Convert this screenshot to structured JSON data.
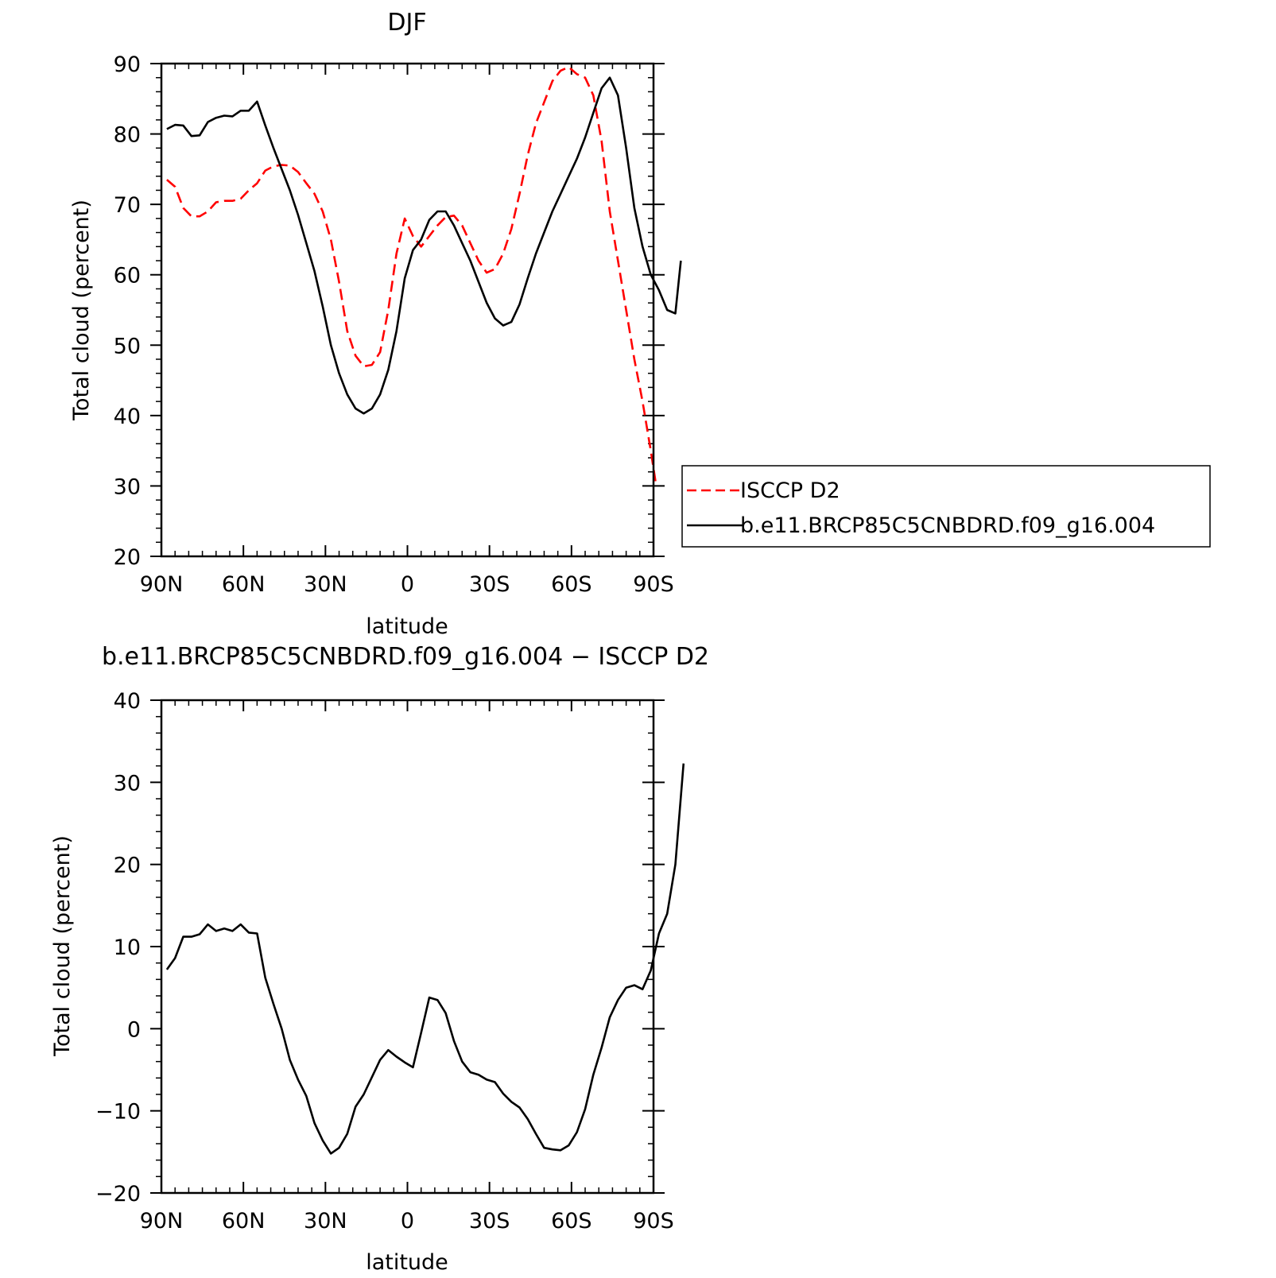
{
  "chart_data": [
    {
      "type": "line",
      "title": "DJF",
      "xlabel": "latitude",
      "ylabel": "Total cloud (percent)",
      "xlim": [
        90,
        -90
      ],
      "ylim": [
        20,
        90
      ],
      "x_ticks": [
        90,
        60,
        30,
        0,
        -30,
        -60,
        -90
      ],
      "x_tick_labels": [
        "90N",
        "60N",
        "30N",
        "0",
        "30S",
        "60S",
        "90S"
      ],
      "y_ticks": [
        20,
        30,
        40,
        50,
        60,
        70,
        80,
        90
      ],
      "y_tick_labels": [
        "20",
        "30",
        "40",
        "50",
        "60",
        "70",
        "80",
        "90"
      ],
      "grid": false,
      "legend_position": "right, outside plot",
      "series": [
        {
          "name": "ISCCP D2",
          "color": "#ff0000",
          "dash": "dashed",
          "points": [
            [
              88,
              73.5
            ],
            [
              85,
              72.5
            ],
            [
              82,
              69.5
            ],
            [
              79,
              68.3
            ],
            [
              76,
              68.3
            ],
            [
              73,
              69
            ],
            [
              70,
              70.3
            ],
            [
              67,
              70.5
            ],
            [
              64,
              70.5
            ],
            [
              61,
              70.8
            ],
            [
              58,
              72
            ],
            [
              55,
              73
            ],
            [
              52,
              74.8
            ],
            [
              49,
              75.4
            ],
            [
              46,
              75.6
            ],
            [
              43,
              75.5
            ],
            [
              40,
              74.6
            ],
            [
              37,
              73
            ],
            [
              34,
              71.5
            ],
            [
              31,
              69
            ],
            [
              28,
              65
            ],
            [
              25,
              59
            ],
            [
              22,
              52
            ],
            [
              19,
              48.5
            ],
            [
              16,
              47
            ],
            [
              13,
              47.2
            ],
            [
              10,
              49
            ],
            [
              7,
              55
            ],
            [
              4,
              63
            ],
            [
              1,
              68
            ],
            [
              -2,
              65.5
            ],
            [
              -5,
              64
            ],
            [
              -8,
              65.5
            ],
            [
              -11,
              67
            ],
            [
              -14,
              68.2
            ],
            [
              -17,
              68.4
            ],
            [
              -20,
              67
            ],
            [
              -23,
              64.5
            ],
            [
              -26,
              62
            ],
            [
              -29,
              60.3
            ],
            [
              -32,
              60.8
            ],
            [
              -35,
              63
            ],
            [
              -38,
              66.5
            ],
            [
              -41,
              71.5
            ],
            [
              -44,
              77
            ],
            [
              -47,
              81.5
            ],
            [
              -50,
              84.5
            ],
            [
              -53,
              87.5
            ],
            [
              -56,
              89
            ],
            [
              -59,
              89.5
            ],
            [
              -62,
              88.5
            ],
            [
              -65,
              88
            ],
            [
              -68,
              85.5
            ],
            [
              -71,
              79
            ],
            [
              -74,
              69
            ],
            [
              -77,
              62
            ],
            [
              -80,
              55
            ],
            [
              -83,
              48
            ],
            [
              -86,
              42
            ],
            [
              -89,
              35
            ],
            [
              -91,
              30
            ]
          ]
        },
        {
          "name": "b.e11.BRCP85C5CNBDRD.f09_g16.004",
          "color": "#000000",
          "dash": "solid",
          "points": [
            [
              88,
              80.7
            ],
            [
              85,
              81.3
            ],
            [
              82,
              81.2
            ],
            [
              79,
              79.7
            ],
            [
              76,
              79.8
            ],
            [
              73,
              81.7
            ],
            [
              70,
              82.3
            ],
            [
              67,
              82.6
            ],
            [
              64,
              82.5
            ],
            [
              61,
              83.3
            ],
            [
              58,
              83.3
            ],
            [
              55,
              84.6
            ],
            [
              52,
              81.2
            ],
            [
              49,
              78
            ],
            [
              46,
              75
            ],
            [
              43,
              72
            ],
            [
              40,
              68.5
            ],
            [
              37,
              64.5
            ],
            [
              34,
              60.5
            ],
            [
              31,
              55.5
            ],
            [
              28,
              50
            ],
            [
              25,
              46
            ],
            [
              22,
              43
            ],
            [
              19,
              41
            ],
            [
              16,
              40.3
            ],
            [
              13,
              41
            ],
            [
              10,
              43
            ],
            [
              7,
              46.5
            ],
            [
              4,
              52
            ],
            [
              1,
              59.5
            ],
            [
              -2,
              63.5
            ],
            [
              -5,
              65
            ],
            [
              -8,
              67.8
            ],
            [
              -11,
              69
            ],
            [
              -14,
              69
            ],
            [
              -17,
              67
            ],
            [
              -20,
              64.5
            ],
            [
              -23,
              62
            ],
            [
              -26,
              59
            ],
            [
              -29,
              56
            ],
            [
              -32,
              53.8
            ],
            [
              -35,
              52.8
            ],
            [
              -38,
              53.3
            ],
            [
              -41,
              55.8
            ],
            [
              -44,
              59.5
            ],
            [
              -47,
              63
            ],
            [
              -50,
              66
            ],
            [
              -53,
              69
            ],
            [
              -56,
              71.5
            ],
            [
              -59,
              74
            ],
            [
              -62,
              76.5
            ],
            [
              -65,
              79.5
            ],
            [
              -68,
              83
            ],
            [
              -71,
              86.5
            ],
            [
              -74,
              88
            ],
            [
              -77,
              85.5
            ],
            [
              -80,
              78
            ],
            [
              -83,
              69.5
            ],
            [
              -86,
              64
            ],
            [
              -89,
              60
            ],
            [
              -92,
              57.8
            ],
            [
              -95,
              55
            ],
            [
              -98,
              54.5
            ],
            [
              -100,
              62
            ]
          ]
        }
      ]
    },
    {
      "type": "line",
      "title": "b.e11.BRCP85C5CNBDRD.f09_g16.004 − ISCCP D2",
      "xlabel": "latitude",
      "ylabel": "Total cloud (percent)",
      "xlim": [
        90,
        -90
      ],
      "ylim": [
        -20,
        40
      ],
      "x_ticks": [
        90,
        60,
        30,
        0,
        -30,
        -60,
        -90
      ],
      "x_tick_labels": [
        "90N",
        "60N",
        "30N",
        "0",
        "30S",
        "60S",
        "90S"
      ],
      "y_ticks": [
        -20,
        -10,
        0,
        10,
        20,
        30,
        40
      ],
      "y_tick_labels": [
        "−20",
        "−10",
        "0",
        "10",
        "20",
        "30",
        "40"
      ],
      "grid": false,
      "series": [
        {
          "color": "#000000",
          "dash": "solid",
          "points": [
            [
              88,
              7.2
            ],
            [
              85,
              8.6
            ],
            [
              82,
              11.2
            ],
            [
              79,
              11.2
            ],
            [
              76,
              11.5
            ],
            [
              73,
              12.7
            ],
            [
              70,
              11.9
            ],
            [
              67,
              12.2
            ],
            [
              64,
              11.9
            ],
            [
              61,
              12.7
            ],
            [
              58,
              11.7
            ],
            [
              55,
              11.6
            ],
            [
              52,
              6.2
            ],
            [
              49,
              3
            ],
            [
              46,
              0
            ],
            [
              43,
              -3.8
            ],
            [
              40,
              -6.2
            ],
            [
              37,
              -8.2
            ],
            [
              34,
              -11.5
            ],
            [
              31,
              -13.6
            ],
            [
              28,
              -15.2
            ],
            [
              25,
              -14.5
            ],
            [
              22,
              -12.8
            ],
            [
              19,
              -9.5
            ],
            [
              16,
              -8
            ],
            [
              13,
              -5.9
            ],
            [
              10,
              -3.8
            ],
            [
              7,
              -2.6
            ],
            [
              4,
              -3.4
            ],
            [
              1,
              -4.1
            ],
            [
              -2,
              -4.7
            ],
            [
              -5,
              -0.5
            ],
            [
              -8,
              3.8
            ],
            [
              -11,
              3.5
            ],
            [
              -14,
              1.9
            ],
            [
              -17,
              -1.5
            ],
            [
              -20,
              -4
            ],
            [
              -23,
              -5.3
            ],
            [
              -26,
              -5.6
            ],
            [
              -29,
              -6.2
            ],
            [
              -32,
              -6.5
            ],
            [
              -35,
              -7.9
            ],
            [
              -38,
              -8.9
            ],
            [
              -41,
              -9.6
            ],
            [
              -44,
              -11
            ],
            [
              -47,
              -12.8
            ],
            [
              -50,
              -14.5
            ],
            [
              -53,
              -14.7
            ],
            [
              -56,
              -14.8
            ],
            [
              -59,
              -14.2
            ],
            [
              -62,
              -12.6
            ],
            [
              -65,
              -9.8
            ],
            [
              -68,
              -5.6
            ],
            [
              -71,
              -2.3
            ],
            [
              -74,
              1.4
            ],
            [
              -77,
              3.5
            ],
            [
              -80,
              5
            ],
            [
              -83,
              5.3
            ],
            [
              -86,
              4.8
            ],
            [
              -89,
              7.1
            ],
            [
              -92,
              11.6
            ],
            [
              -95,
              14
            ],
            [
              -98,
              20
            ],
            [
              -101,
              32.3
            ]
          ]
        }
      ]
    }
  ]
}
